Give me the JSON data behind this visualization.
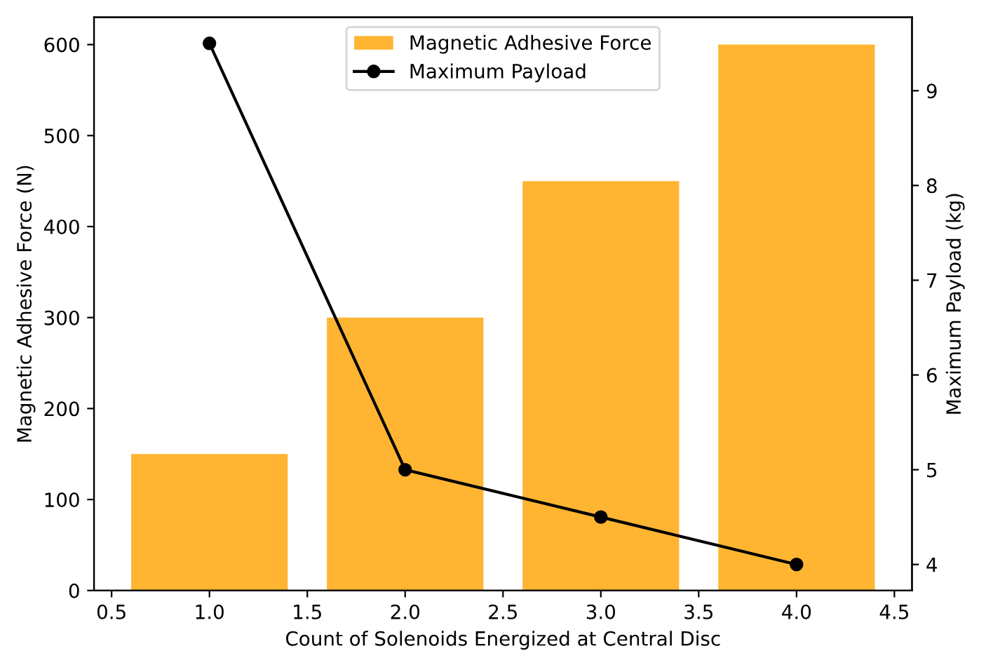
{
  "chart_data": {
    "type": "bar",
    "xlabel": "Count of Solenoids Energized at Central Disc",
    "ylabel": "Magnetic Adhesive Force (N)",
    "y2label": "Maximum Payload (kg)",
    "x": [
      1.0,
      2.0,
      3.0,
      4.0
    ],
    "series": [
      {
        "name": "Magnetic Adhesive Force",
        "color": "#ffb532",
        "values": [
          150,
          300,
          450,
          600
        ]
      },
      {
        "name": "Maximum Payload",
        "type": "line",
        "axis": "y2",
        "color": "#000000",
        "marker": "circle",
        "values": [
          9.5,
          5,
          4.5,
          4
        ]
      }
    ],
    "xlim": [
      0.41,
      4.59
    ],
    "xticks": [
      {
        "value": 0.5,
        "label": "0.5"
      },
      {
        "value": 1.0,
        "label": "1.0"
      },
      {
        "value": 1.5,
        "label": "1.5"
      },
      {
        "value": 2.0,
        "label": "2.0"
      },
      {
        "value": 2.5,
        "label": "2.5"
      },
      {
        "value": 3.0,
        "label": "3.0"
      },
      {
        "value": 3.5,
        "label": "3.5"
      },
      {
        "value": 4.0,
        "label": "4.0"
      },
      {
        "value": 4.5,
        "label": "4.5"
      }
    ],
    "ylim": [
      0,
      630
    ],
    "yticks": [
      0,
      100,
      200,
      300,
      400,
      500,
      600
    ],
    "y2lim": [
      3.725,
      9.775
    ],
    "y2ticks": [
      4,
      5,
      6,
      7,
      8,
      9
    ],
    "legend": "top",
    "grid": false
  }
}
